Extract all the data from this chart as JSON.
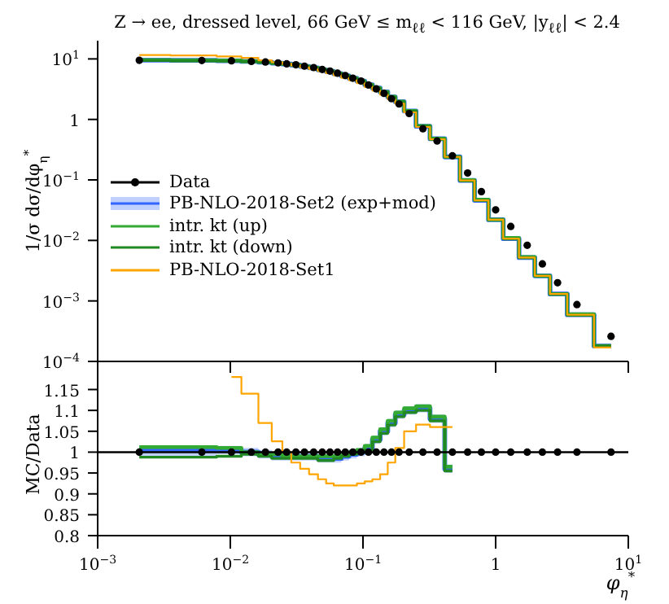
{
  "chart_data": [
    {
      "type": "line",
      "title": "Z → ee, dressed level, 66 GeV ≤ m$_{ℓℓ}$ < 116 GeV, |y$_{ℓℓ}$| < 2.4",
      "ylabel": "1/σ dσ/dφ$_{η}$$^{*}$",
      "log": "xy",
      "legend": "left",
      "tick_labels": "y",
      "xlim": [
        0.001,
        10
      ],
      "xticks": [
        {
          "value": 0.001,
          "label": null
        },
        {
          "value": 0.01,
          "label": null
        },
        {
          "value": 0.1,
          "label": null
        },
        {
          "value": 1,
          "label": null
        },
        {
          "value": 10,
          "label": null
        }
      ],
      "ylim": [
        0.0001,
        20
      ],
      "yticks": [
        {
          "value": 0.0001,
          "label": "10$^{−4}$"
        },
        {
          "value": 0.001,
          "label": "10$^{−3}$"
        },
        {
          "value": 0.01,
          "label": "10$^{−2}$"
        },
        {
          "value": 0.1,
          "label": "10$^{−1}$"
        },
        1,
        {
          "value": 10,
          "label": "10$^{1}$"
        }
      ],
      "x": [
        0.00206,
        0.0061,
        0.0102,
        0.0144,
        0.0184,
        0.0229,
        0.0266,
        0.0312,
        0.0362,
        0.0425,
        0.0493,
        0.0564,
        0.0643,
        0.0735,
        0.0838,
        0.0966,
        0.11,
        0.126,
        0.144,
        0.164,
        0.187,
        0.223,
        0.283,
        0.362,
        0.472,
        0.615,
        0.781,
        1.0,
        1.3,
        1.73,
        2.25,
        2.93,
        4.1,
        7.41
      ],
      "series": [
        {
          "name": "Data",
          "type": "scatter",
          "marker": "circle",
          "color": "#000000",
          "values": [
            9.5,
            9.4,
            9.3,
            9.1,
            8.9,
            8.6,
            8.3,
            8.0,
            7.6,
            7.2,
            6.7,
            6.3,
            5.8,
            5.3,
            4.8,
            4.3,
            3.7,
            3.2,
            2.7,
            2.2,
            1.8,
            1.25,
            0.7,
            0.44,
            0.25,
            0.13,
            0.064,
            0.032,
            0.017,
            0.0083,
            0.0041,
            0.002,
            0.00087,
            0.00026
          ]
        },
        {
          "name": "PB-NLO-2018-Set2 (exp+mod)",
          "type": "step",
          "marker": "none",
          "color": "#3366ff",
          "values": [
            9.55,
            9.45,
            9.35,
            9.1,
            8.86,
            8.51,
            8.22,
            7.92,
            7.52,
            7.13,
            6.6,
            6.21,
            5.71,
            5.25,
            4.78,
            4.3,
            3.74,
            3.3,
            2.84,
            2.35,
            1.96,
            1.38,
            0.77,
            0.48,
            0.24,
            0.098,
            0.046,
            0.022,
            0.0107,
            0.0052,
            0.0026,
            0.0013,
            0.00059,
            0.00018
          ]
        },
        {
          "name": "intr. kt (up)",
          "type": "step",
          "marker": "none",
          "color": "#33aa33",
          "values": [
            9.6,
            9.5,
            9.4,
            9.1,
            8.86,
            8.56,
            8.22,
            7.92,
            7.52,
            7.13,
            6.63,
            6.24,
            5.74,
            5.27,
            4.8,
            4.32,
            3.76,
            3.31,
            2.85,
            2.37,
            1.97,
            1.38,
            0.78,
            0.48,
            0.24,
            0.099,
            0.047,
            0.022,
            0.011,
            0.0053,
            0.0026,
            0.0013,
            0.0006,
            0.00018
          ]
        },
        {
          "name": "intr. kt (down)",
          "type": "step",
          "marker": "none",
          "color": "#228822",
          "values": [
            9.39,
            9.29,
            9.21,
            9.05,
            8.81,
            8.47,
            8.18,
            7.88,
            7.49,
            7.09,
            6.57,
            6.17,
            5.71,
            5.25,
            4.78,
            4.3,
            3.72,
            3.28,
            2.82,
            2.34,
            1.95,
            1.37,
            0.77,
            0.47,
            0.24,
            0.097,
            0.046,
            0.022,
            0.0106,
            0.0052,
            0.0026,
            0.0013,
            0.00058,
            0.00018
          ]
        },
        {
          "name": "PB-NLO-2018-Set1",
          "type": "step",
          "marker": "none",
          "color": "#ffa500",
          "values": [
            11.6,
            11.4,
            11.0,
            10.4,
            9.5,
            8.8,
            8.3,
            7.8,
            7.3,
            6.8,
            6.26,
            5.83,
            5.34,
            4.88,
            4.44,
            3.98,
            3.44,
            2.99,
            2.56,
            2.15,
            1.82,
            1.31,
            0.75,
            0.47,
            0.24,
            0.098,
            0.046,
            0.022,
            0.0107,
            0.0052,
            0.0026,
            0.0013,
            0.00059,
            0.00017
          ]
        }
      ]
    },
    {
      "type": "line",
      "xlabel": "φ$_{η}$$^{*}$",
      "ylabel": "MC/Data",
      "log": "x",
      "xlim": [
        0.001,
        10
      ],
      "xticks": [
        {
          "value": 0.001,
          "label": "10$^{−3}$"
        },
        {
          "value": 0.01,
          "label": "10$^{−2}$"
        },
        {
          "value": 0.1,
          "label": "10$^{−1}$"
        },
        1,
        {
          "value": 10,
          "label": "10$^{1}$"
        }
      ],
      "ylim": [
        0.8,
        1.19
      ],
      "yticks": [
        0.8,
        0.85,
        0.9,
        0.95,
        1,
        1.05,
        1.1,
        1.15
      ],
      "ref_lines": [
        {
          "axis": "y",
          "value": 1,
          "color": "#000000"
        }
      ],
      "x": [
        0.00206,
        0.0061,
        0.0102,
        0.0144,
        0.0184,
        0.0229,
        0.0266,
        0.0312,
        0.0362,
        0.0425,
        0.0493,
        0.0564,
        0.0643,
        0.0735,
        0.0838,
        0.0966,
        0.11,
        0.126,
        0.144,
        0.164,
        0.187,
        0.223,
        0.283,
        0.362,
        0.472,
        0.615,
        0.781,
        1.0,
        1.3,
        1.73,
        2.25,
        2.93,
        4.1,
        7.41
      ],
      "series": [
        {
          "type": "step",
          "marker": "none",
          "color": "#3366ff",
          "values": [
            1.005,
            1.005,
            1.005,
            1.0,
            0.995,
            0.99,
            0.99,
            0.99,
            0.99,
            0.99,
            0.985,
            0.985,
            0.985,
            0.99,
            0.995,
            1.0,
            1.01,
            1.03,
            1.05,
            1.07,
            1.09,
            1.1,
            1.105,
            1.08,
            0.96,
            null,
            null,
            null,
            null,
            null,
            null,
            null,
            null,
            null
          ],
          "lower": [
            0.99,
            0.99,
            0.995,
            0.99,
            0.985,
            0.98,
            0.98,
            0.98,
            0.98,
            0.98,
            0.975,
            0.975,
            0.975,
            0.98,
            0.985,
            0.99,
            1.0,
            1.02,
            1.04,
            1.06,
            1.08,
            1.09,
            1.095,
            1.07,
            0.95,
            null,
            null,
            null,
            null,
            null,
            null,
            null,
            null,
            null
          ],
          "upper": [
            1.015,
            1.015,
            1.015,
            1.01,
            1.005,
            1.0,
            1.0,
            1.0,
            1.0,
            1.0,
            0.995,
            0.995,
            0.995,
            1.0,
            1.005,
            1.01,
            1.02,
            1.04,
            1.06,
            1.08,
            1.1,
            1.11,
            1.115,
            1.09,
            0.97,
            null,
            null,
            null,
            null,
            null,
            null,
            null,
            null,
            null
          ]
        },
        {
          "type": "step",
          "marker": "none",
          "color": "#33aa33",
          "values": [
            1.012,
            1.012,
            1.01,
            1.0,
            0.995,
            0.995,
            0.99,
            0.99,
            0.99,
            0.99,
            0.99,
            0.99,
            0.99,
            0.995,
            1.0,
            1.005,
            1.015,
            1.035,
            1.055,
            1.075,
            1.095,
            1.105,
            1.11,
            1.085,
            0.965,
            null,
            null,
            null,
            null,
            null,
            null,
            null,
            null,
            null
          ]
        },
        {
          "type": "step",
          "marker": "none",
          "color": "#228822",
          "values": [
            0.988,
            0.988,
            0.99,
            0.995,
            0.99,
            0.985,
            0.985,
            0.985,
            0.985,
            0.985,
            0.98,
            0.98,
            0.985,
            0.99,
            0.995,
            1.0,
            1.005,
            1.025,
            1.045,
            1.065,
            1.085,
            1.095,
            1.1,
            1.075,
            0.955,
            null,
            null,
            null,
            null,
            null,
            null,
            null,
            null,
            null
          ]
        },
        {
          "type": "step",
          "marker": "none",
          "color": "#ffa500",
          "values": [
            null,
            null,
            1.18,
            1.14,
            1.07,
            1.026,
            1.0,
            0.975,
            0.96,
            0.947,
            0.935,
            0.925,
            0.92,
            0.92,
            0.92,
            0.925,
            0.93,
            0.935,
            0.947,
            0.975,
            1.01,
            1.05,
            1.066,
            1.06,
            1.06,
            null,
            null,
            null,
            null,
            null,
            null,
            null,
            null,
            null
          ]
        },
        {
          "type": "scatter",
          "marker": "circle",
          "color": "#000000",
          "values": [
            1,
            1,
            1,
            1,
            1,
            1,
            1,
            1,
            1,
            1,
            1,
            1,
            1,
            1,
            1,
            1,
            1,
            1,
            1,
            1,
            1,
            1,
            1,
            1,
            1,
            1,
            1,
            1,
            1,
            1,
            1,
            1,
            1,
            1
          ]
        }
      ]
    }
  ]
}
